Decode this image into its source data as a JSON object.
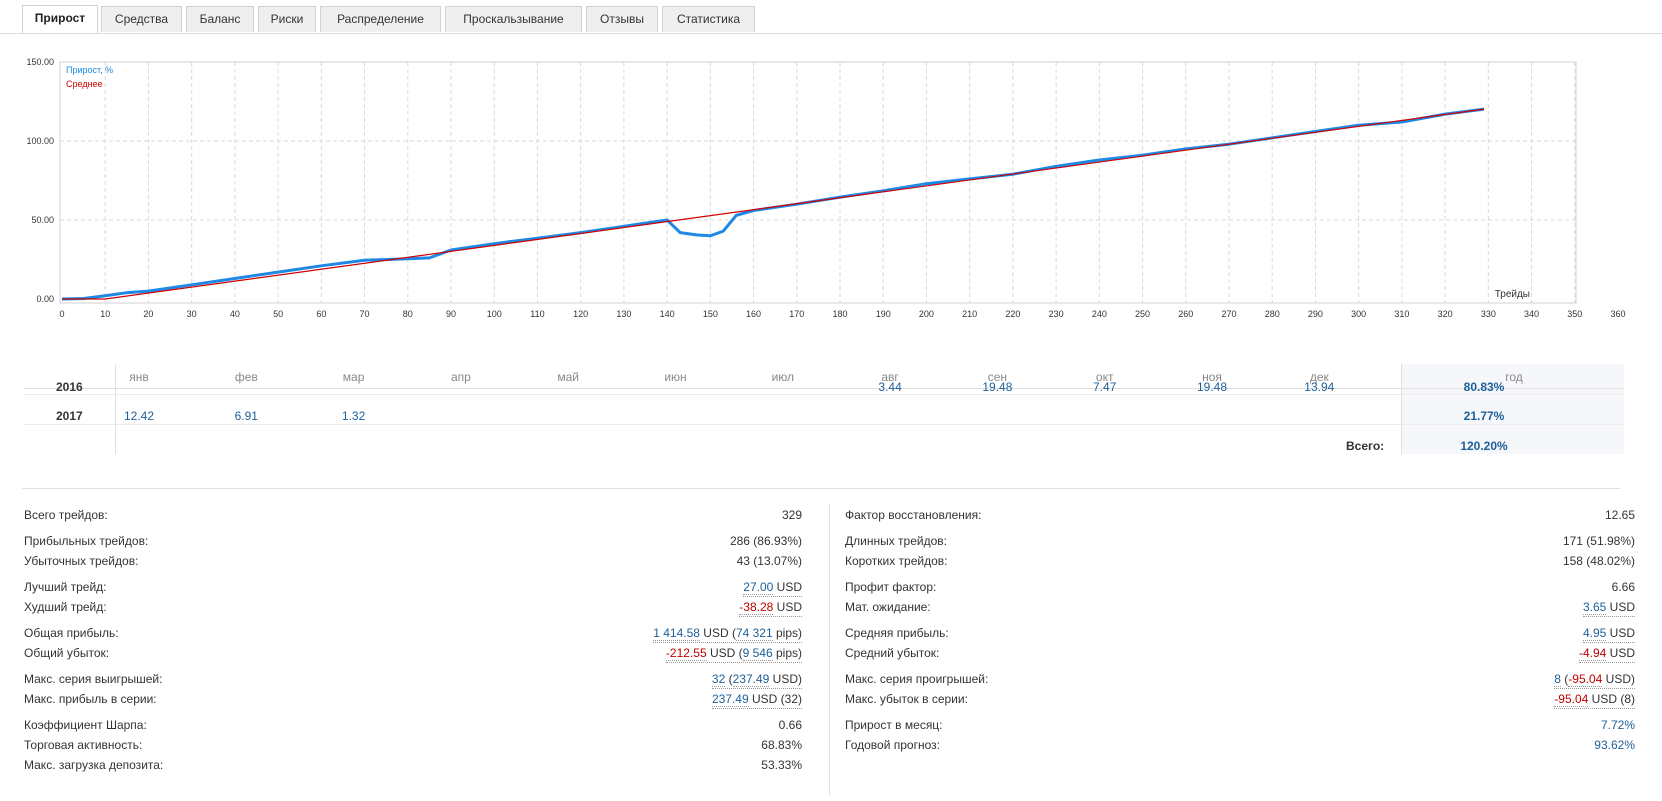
{
  "tabs": [
    {
      "label": "Прирост",
      "active": true
    },
    {
      "label": "Средства"
    },
    {
      "label": "Баланс"
    },
    {
      "label": "Риски"
    },
    {
      "label": "Распределение"
    },
    {
      "label": "Проскальзывание"
    },
    {
      "label": "Отзывы"
    },
    {
      "label": "Статистика"
    }
  ],
  "chart_data": {
    "type": "line",
    "xlabel": "Трейды",
    "ylabel": "",
    "xlim": [
      0,
      360
    ],
    "ylim": [
      0,
      150
    ],
    "x_ticks": [
      "0",
      "10",
      "20",
      "30",
      "40",
      "50",
      "60",
      "70",
      "80",
      "90",
      "100",
      "110",
      "120",
      "130",
      "140",
      "150",
      "160",
      "170",
      "180",
      "190",
      "200",
      "210",
      "220",
      "230",
      "240",
      "250",
      "260",
      "270",
      "280",
      "290",
      "300",
      "310",
      "320",
      "330",
      "340",
      "350",
      "360"
    ],
    "y_ticks": [
      "0.00",
      "50.00",
      "100.00",
      "150.00"
    ],
    "grid": true,
    "legend_position": "top-left",
    "series": [
      {
        "name": "Прирост, %",
        "color": "#1e88e5",
        "x": [
          0,
          5,
          10,
          15,
          20,
          30,
          40,
          50,
          60,
          70,
          80,
          85,
          90,
          100,
          110,
          120,
          130,
          140,
          143,
          147,
          150,
          153,
          156,
          160,
          170,
          180,
          190,
          200,
          210,
          220,
          230,
          240,
          250,
          260,
          270,
          280,
          290,
          300,
          310,
          320,
          329
        ],
        "y": [
          0,
          0.3,
          2,
          4,
          5,
          9,
          13,
          17,
          21,
          24.5,
          25.5,
          26,
          31,
          35,
          38.5,
          42,
          46,
          50,
          42,
          40.5,
          40,
          43,
          53,
          56,
          60,
          64.5,
          68.5,
          73,
          76,
          79,
          84,
          88,
          91,
          95,
          98,
          102,
          106,
          110,
          112,
          117,
          120.2
        ]
      },
      {
        "name": "Среднее",
        "color": "#d00000",
        "x": [
          0,
          10,
          329
        ],
        "y": [
          0,
          0,
          120.2
        ]
      }
    ]
  },
  "monthly": {
    "months": [
      "янв",
      "фев",
      "мар",
      "апр",
      "май",
      "июн",
      "июл",
      "авг",
      "сен",
      "окт",
      "ноя",
      "дек"
    ],
    "year_header": "год",
    "rows": [
      {
        "year": "2016",
        "values": [
          "",
          "",
          "",
          "",
          "",
          "",
          "",
          "3.44",
          "19.48",
          "7.47",
          "19.48",
          "13.94"
        ],
        "total": "80.83%"
      },
      {
        "year": "2017",
        "values": [
          "12.42",
          "6.91",
          "1.32",
          "",
          "",
          "",
          "",
          "",
          "",
          "",
          "",
          ""
        ],
        "total": "21.77%"
      }
    ],
    "grand_label": "Всего:",
    "grand_total": "120.20%"
  },
  "stats_left": [
    {
      "label": "Всего трейдов:",
      "value": "329"
    },
    {
      "label": "Прибыльных трейдов:",
      "value": "286 (86.93%)"
    },
    {
      "label": "Убыточных трейдов:",
      "value": "43 (13.07%)"
    },
    {
      "label": "Лучший трейд:",
      "num": "27.00",
      "unit": " USD"
    },
    {
      "label": "Худший трейд:",
      "num": "-38.28",
      "unit": " USD"
    },
    {
      "label": "Общая прибыль:",
      "num": "1 414.58",
      "unit": " USD (",
      "num2": "74 321",
      "unit2": " pips)"
    },
    {
      "label": "Общий убыток:",
      "num": "-212.55",
      "unit": " USD (",
      "num2": "9 546",
      "unit2": " pips)"
    },
    {
      "label": "Макс. серия выигрышей:",
      "num": "32",
      "unit": " (",
      "num2": "237.49",
      "unit2": " USD)"
    },
    {
      "label": "Макс. прибыль в серии:",
      "num": "237.49",
      "unit": " USD (32)"
    },
    {
      "label": "Коэффициент Шарпа:",
      "value": "0.66"
    },
    {
      "label": "Торговая активность:",
      "value": "68.83%"
    },
    {
      "label": "Макс. загрузка депозита:",
      "value": "53.33%"
    }
  ],
  "stats_right": [
    {
      "label": "Фактор восстановления:",
      "value": "12.65"
    },
    {
      "label": "Длинных трейдов:",
      "value": "171 (51.98%)"
    },
    {
      "label": "Коротких трейдов:",
      "value": "158 (48.02%)"
    },
    {
      "label": "Профит фактор:",
      "value": "6.66"
    },
    {
      "label": "Мат. ожидание:",
      "num": "3.65",
      "unit": " USD"
    },
    {
      "label": "Средняя прибыль:",
      "num": "4.95",
      "unit": " USD"
    },
    {
      "label": "Средний убыток:",
      "num": "-4.94",
      "unit": " USD"
    },
    {
      "label": "Макс. серия проигрышей:",
      "num": "8",
      "unit": " (",
      "num2": "-95.04",
      "unit2": " USD)"
    },
    {
      "label": "Макс. убыток в серии:",
      "num": "-95.04",
      "unit": " USD (8)"
    },
    {
      "label": "Прирост в месяц:",
      "value": "7.72%"
    },
    {
      "label": "Годовой прогноз:",
      "value": "93.62%"
    }
  ]
}
